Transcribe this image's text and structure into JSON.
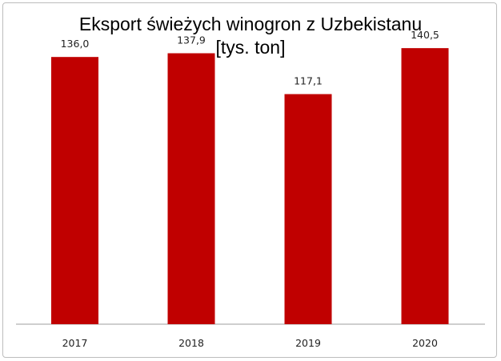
{
  "chart_data": {
    "type": "bar",
    "title_lines": [
      "Eksport świeżych winogron z Uzbekistanu",
      "[tys. ton]"
    ],
    "categories": [
      "2017",
      "2018",
      "2019",
      "2020"
    ],
    "values": [
      136.0,
      137.9,
      117.1,
      140.5
    ],
    "value_labels": [
      "136,0",
      "137,9",
      "117,1",
      "140,5"
    ],
    "ylim": [
      0,
      165
    ],
    "bar_color": "#c00000",
    "grid": false,
    "legend": "none"
  }
}
